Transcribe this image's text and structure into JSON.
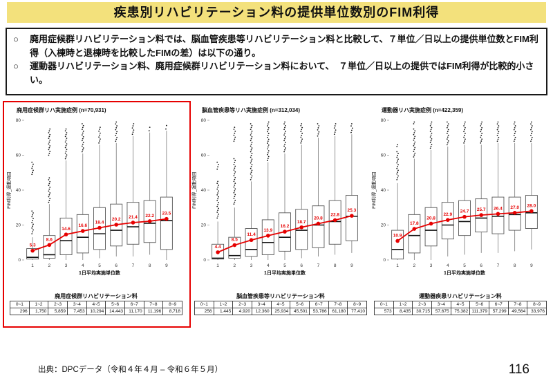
{
  "page": {
    "title": "疾患別リハビリテーション料の提供単位数別のFIM利得",
    "bullets": [
      {
        "marker": "○",
        "text": "廃用症候群リハビリテーション料では、脳血管疾患等リハビリテーション料と比較して、７単位／日以上の提供単位数とFIM利得（入棟時と退棟時を比較したFIMの差）は以下の通り。"
      },
      {
        "marker": "○",
        "text": "運動器リハビリテーション料、廃用症候群リハビリテーション料において、　７単位／日以上の提供ではFIM利得が比較的小さい。"
      }
    ],
    "source": "出典：DPCデータ（令和４年４月 – 令和６年５月）",
    "page_number": "116",
    "colors": {
      "title_bar_bg": "#F3E17C",
      "accent_red": "#E60000"
    }
  },
  "chart_data": [
    {
      "type": "boxplot",
      "title": "廃用症候群リハ実施症例 (n=70,931)",
      "xlabel": "1日平均実施単位数",
      "ylabel": "FIM利得_運動項目",
      "ylim": [
        0,
        80
      ],
      "yticks": [
        0,
        20,
        40,
        60,
        80
      ],
      "categories": [
        "1",
        "2",
        "3",
        "4",
        "5",
        "6",
        "7",
        "8",
        "9"
      ],
      "mean_series": {
        "name": "平均FIM利得",
        "color": "#E60000",
        "values": [
          5.3,
          8.6,
          14.6,
          16.6,
          18.4,
          20.2,
          21.4,
          22.2,
          23.5
        ]
      },
      "boxes": [
        {
          "lo": 0,
          "q1": 0.5,
          "med": 1.5,
          "q3": 6.5,
          "hi": 13,
          "out": [
            [
              15,
              28
            ],
            [
              49,
              56
            ]
          ]
        },
        {
          "lo": 0,
          "q1": 1,
          "med": 3,
          "q3": 14,
          "hi": 32,
          "out": [
            [
              33,
              47
            ],
            [
              60,
              75
            ]
          ]
        },
        {
          "lo": 0,
          "q1": 3,
          "med": 11,
          "q3": 24,
          "hi": 57,
          "out": [
            [
              58,
              75
            ]
          ]
        },
        {
          "lo": 0,
          "q1": 4,
          "med": 13,
          "q3": 26,
          "hi": 61,
          "out": [
            [
              62,
              78
            ]
          ]
        },
        {
          "lo": 1,
          "q1": 6,
          "med": 15,
          "q3": 30,
          "hi": 66,
          "out": [
            [
              67,
              76
            ]
          ]
        },
        {
          "lo": 2,
          "q1": 8,
          "med": 17,
          "q3": 32,
          "hi": 67,
          "out": [
            [
              68,
              79
            ]
          ]
        },
        {
          "lo": 2,
          "q1": 9,
          "med": 19,
          "q3": 33,
          "hi": 71,
          "out": [
            [
              72,
              78
            ]
          ]
        },
        {
          "lo": 3,
          "q1": 10,
          "med": 21,
          "q3": 34,
          "hi": 73,
          "out": [
            [
              74,
              76
            ]
          ]
        },
        {
          "lo": 0,
          "q1": 6,
          "med": 22.5,
          "q3": 36,
          "hi": 74,
          "out": [
            [
              75,
              77
            ]
          ]
        }
      ],
      "highlighted": true,
      "table": {
        "title": "廃用症候群リハビリテーション料",
        "headers": [
          "0~1",
          "1~2",
          "2~3",
          "3~4",
          "4~5",
          "5~6",
          "6~7",
          "7~8",
          "8~9"
        ],
        "values": [
          "296",
          "1,750",
          "5,859",
          "7,453",
          "10,294",
          "14,443",
          "11,170",
          "11,196",
          "8,718"
        ]
      }
    },
    {
      "type": "boxplot",
      "title": "脳血管疾患等リハ実施症例 (n=312,034)",
      "xlabel": "1日平均実施単位数",
      "ylabel": "FIM利得_運動項目",
      "ylim": [
        0,
        80
      ],
      "yticks": [
        0,
        20,
        40,
        60,
        80
      ],
      "categories": [
        "1",
        "2",
        "3",
        "4",
        "5",
        "6",
        "7",
        "8",
        "9"
      ],
      "mean_series": {
        "name": "平均FIM利得",
        "color": "#E60000",
        "values": [
          4.4,
          8.5,
          11.4,
          13.9,
          16.2,
          18.7,
          20.8,
          22.8,
          25.3
        ]
      },
      "boxes": [
        {
          "lo": 0,
          "q1": 0.5,
          "med": 1,
          "q3": 9,
          "hi": 22,
          "out": [
            [
              24,
              45
            ],
            [
              52,
              56
            ]
          ]
        },
        {
          "lo": 0,
          "q1": 1,
          "med": 2.5,
          "q3": 13,
          "hi": 30,
          "out": [
            [
              32,
              58
            ],
            [
              68,
              76
            ]
          ]
        },
        {
          "lo": 0,
          "q1": 2,
          "med": 6,
          "q3": 18,
          "hi": 45,
          "out": [
            [
              46,
              78
            ]
          ]
        },
        {
          "lo": 0,
          "q1": 3,
          "med": 10,
          "q3": 23,
          "hi": 56,
          "out": [
            [
              57,
              79
            ]
          ]
        },
        {
          "lo": 0,
          "q1": 5,
          "med": 13,
          "q3": 27,
          "hi": 61,
          "out": [
            [
              62,
              79
            ]
          ]
        },
        {
          "lo": 1,
          "q1": 6,
          "med": 17,
          "q3": 29,
          "hi": 66,
          "out": [
            [
              67,
              78
            ]
          ]
        },
        {
          "lo": 2,
          "q1": 7,
          "med": 20,
          "q3": 31,
          "hi": 70,
          "out": [
            [
              71,
              78
            ]
          ]
        },
        {
          "lo": 3,
          "q1": 9,
          "med": 22,
          "q3": 34,
          "hi": 71,
          "out": [
            [
              72,
              78
            ]
          ]
        },
        {
          "lo": 4,
          "q1": 11,
          "med": 25,
          "q3": 37,
          "hi": 72,
          "out": [
            [
              73,
              78
            ]
          ]
        }
      ],
      "highlighted": false,
      "table": {
        "title": "脳血管疾患等リハビリテーション料",
        "headers": [
          "0~1",
          "1~2",
          "2~3",
          "3~4",
          "4~5",
          "5~6",
          "6~7",
          "7~8",
          "8~9"
        ],
        "values": [
          "256",
          "1,445",
          "4,920",
          "12,360",
          "25,934",
          "45,501",
          "53,786",
          "61,180",
          "77,410"
        ]
      }
    },
    {
      "type": "boxplot",
      "title": "運動器リハ実施症例 (n=422,359)",
      "xlabel": "1日平均実施単位数",
      "ylabel": "FIM利得_運動項目",
      "ylim": [
        0,
        80
      ],
      "yticks": [
        0,
        20,
        40,
        60,
        80
      ],
      "categories": [
        "1",
        "2",
        "3",
        "4",
        "5",
        "6",
        "7",
        "8",
        "9"
      ],
      "mean_series": {
        "name": "平均FIM利得",
        "color": "#E60000",
        "values": [
          10.9,
          17.8,
          20.8,
          22.9,
          24.7,
          25.7,
          26.4,
          27.0,
          28.0
        ]
      },
      "boxes": [
        {
          "lo": 0,
          "q1": 0.5,
          "med": 6,
          "q3": 17,
          "hi": 44,
          "out": [
            [
              46,
              62
            ],
            [
              65,
              66
            ]
          ]
        },
        {
          "lo": 0,
          "q1": 4,
          "med": 14,
          "q3": 26,
          "hi": 58,
          "out": [
            [
              59,
              75
            ],
            [
              78,
              79
            ]
          ]
        },
        {
          "lo": 0,
          "q1": 8,
          "med": 17,
          "q3": 30,
          "hi": 63,
          "out": [
            [
              64,
              79
            ]
          ]
        },
        {
          "lo": 2,
          "q1": 12,
          "med": 20,
          "q3": 33,
          "hi": 65,
          "out": [
            [
              66,
              79
            ]
          ]
        },
        {
          "lo": 3,
          "q1": 14,
          "med": 22,
          "q3": 34,
          "hi": 66,
          "out": [
            [
              67,
              79
            ]
          ]
        },
        {
          "lo": 4,
          "q1": 16,
          "med": 24,
          "q3": 35,
          "hi": 66,
          "out": [
            [
              67,
              79
            ]
          ]
        },
        {
          "lo": 4,
          "q1": 15,
          "med": 25,
          "q3": 36,
          "hi": 67,
          "out": [
            [
              68,
              79
            ]
          ]
        },
        {
          "lo": 5,
          "q1": 17,
          "med": 26,
          "q3": 36,
          "hi": 67,
          "out": [
            [
              68,
              79
            ]
          ]
        },
        {
          "lo": 6,
          "q1": 18,
          "med": 27,
          "q3": 37,
          "hi": 67,
          "out": [
            [
              68,
              79
            ]
          ]
        }
      ],
      "highlighted": false,
      "table": {
        "title": "運動器疾患リハビリテーション料",
        "headers": [
          "0~1",
          "1~2",
          "2~3",
          "3~4",
          "4~5",
          "5~6",
          "6~7",
          "7~8",
          "8~9"
        ],
        "values": [
          "573",
          "8,435",
          "30,715",
          "57,675",
          "75,382",
          "111,379",
          "57,299",
          "49,564",
          "33,976"
        ]
      }
    }
  ]
}
